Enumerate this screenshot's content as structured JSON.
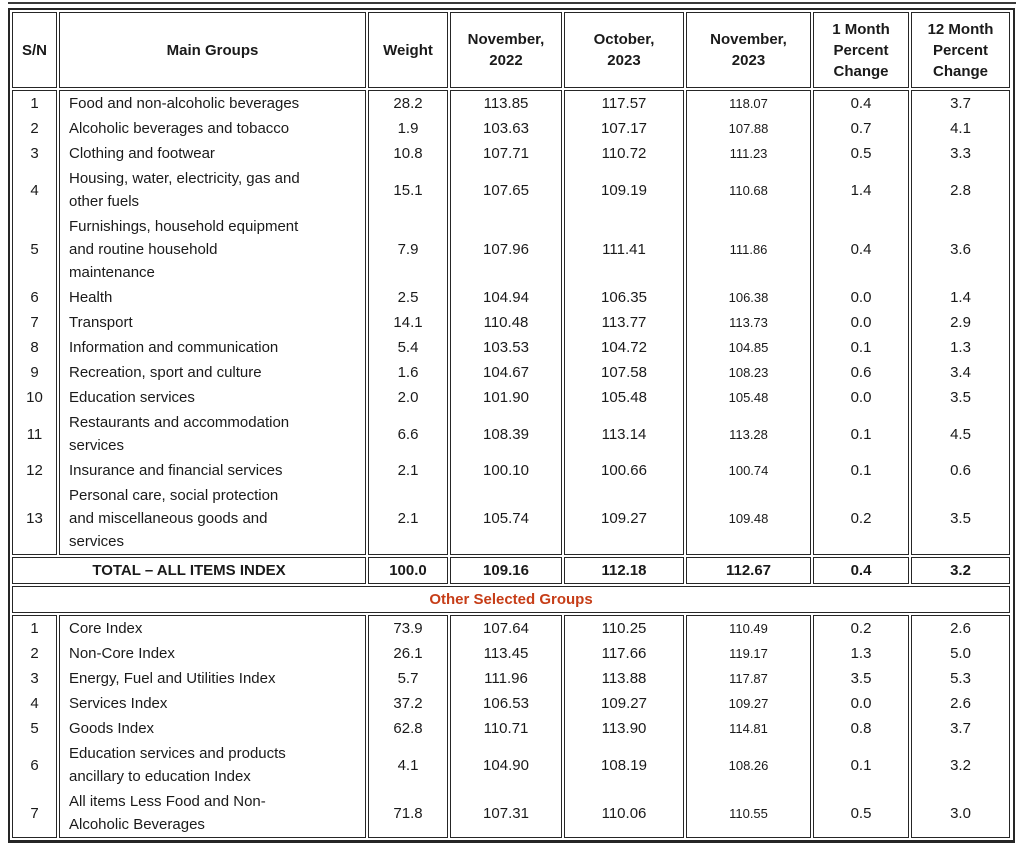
{
  "table": {
    "accent_color": "#C63D17",
    "columns": [
      "S/N",
      "Main Groups",
      "Weight",
      "November,\n2022",
      "October,\n2023",
      "November,\n2023",
      "1 Month\nPercent\nChange",
      "12 Month\nPercent\nChange"
    ],
    "main_rows": [
      {
        "sn": "1",
        "name": "Food and non-alcoholic beverages",
        "weight": "28.2",
        "nov2022": "113.85",
        "oct2023": "117.57",
        "nov2023": "118.07",
        "m1": "0.4",
        "m12": "3.7"
      },
      {
        "sn": "2",
        "name": "Alcoholic beverages and tobacco",
        "weight": "1.9",
        "nov2022": "103.63",
        "oct2023": "107.17",
        "nov2023": "107.88",
        "m1": "0.7",
        "m12": "4.1"
      },
      {
        "sn": "3",
        "name": "Clothing and footwear",
        "weight": "10.8",
        "nov2022": "107.71",
        "oct2023": "110.72",
        "nov2023": "111.23",
        "m1": "0.5",
        "m12": "3.3"
      },
      {
        "sn": "4",
        "name": "Housing, water, electricity, gas and\nother fuels",
        "weight": "15.1",
        "nov2022": "107.65",
        "oct2023": "109.19",
        "nov2023": "110.68",
        "m1": "1.4",
        "m12": "2.8"
      },
      {
        "sn": "5",
        "name": "Furnishings, household equipment\nand routine household\nmaintenance",
        "weight": "7.9",
        "nov2022": "107.96",
        "oct2023": "111.41",
        "nov2023": "111.86",
        "m1": "0.4",
        "m12": "3.6"
      },
      {
        "sn": "6",
        "name": "Health",
        "weight": "2.5",
        "nov2022": "104.94",
        "oct2023": "106.35",
        "nov2023": "106.38",
        "m1": "0.0",
        "m12": "1.4"
      },
      {
        "sn": "7",
        "name": "Transport",
        "weight": "14.1",
        "nov2022": "110.48",
        "oct2023": "113.77",
        "nov2023": "113.73",
        "m1": "0.0",
        "m12": "2.9"
      },
      {
        "sn": "8",
        "name": "Information and communication",
        "weight": "5.4",
        "nov2022": "103.53",
        "oct2023": "104.72",
        "nov2023": "104.85",
        "m1": "0.1",
        "m12": "1.3"
      },
      {
        "sn": "9",
        "name": "Recreation, sport and culture",
        "weight": "1.6",
        "nov2022": "104.67",
        "oct2023": "107.58",
        "nov2023": "108.23",
        "m1": "0.6",
        "m12": "3.4"
      },
      {
        "sn": "10",
        "name": "Education services",
        "weight": "2.0",
        "nov2022": "101.90",
        "oct2023": "105.48",
        "nov2023": "105.48",
        "m1": "0.0",
        "m12": "3.5"
      },
      {
        "sn": "11",
        "name": "Restaurants and accommodation\nservices",
        "weight": "6.6",
        "nov2022": "108.39",
        "oct2023": "113.14",
        "nov2023": "113.28",
        "m1": "0.1",
        "m12": "4.5"
      },
      {
        "sn": "12",
        "name": "Insurance and financial services",
        "weight": "2.1",
        "nov2022": "100.10",
        "oct2023": "100.66",
        "nov2023": "100.74",
        "m1": "0.1",
        "m12": "0.6"
      },
      {
        "sn": "13",
        "name": "Personal care, social protection\nand miscellaneous goods and\nservices",
        "weight": "2.1",
        "nov2022": "105.74",
        "oct2023": "109.27",
        "nov2023": "109.48",
        "m1": "0.2",
        "m12": "3.5"
      }
    ],
    "total": {
      "label": "TOTAL – ALL ITEMS INDEX",
      "weight": "100.0",
      "nov2022": "109.16",
      "oct2023": "112.18",
      "nov2023": "112.67",
      "m1": "0.4",
      "m12": "3.2"
    },
    "section_title": "Other Selected Groups",
    "other_rows": [
      {
        "sn": "1",
        "name": "Core Index",
        "weight": "73.9",
        "nov2022": "107.64",
        "oct2023": "110.25",
        "nov2023": "110.49",
        "m1": "0.2",
        "m12": "2.6"
      },
      {
        "sn": "2",
        "name": "Non-Core Index",
        "weight": "26.1",
        "nov2022": "113.45",
        "oct2023": "117.66",
        "nov2023": "119.17",
        "m1": "1.3",
        "m12": "5.0"
      },
      {
        "sn": "3",
        "name": "Energy, Fuel and Utilities Index",
        "weight": "5.7",
        "nov2022": "111.96",
        "oct2023": "113.88",
        "nov2023": "117.87",
        "m1": "3.5",
        "m12": "5.3"
      },
      {
        "sn": "4",
        "name": "Services Index",
        "weight": "37.2",
        "nov2022": "106.53",
        "oct2023": "109.27",
        "nov2023": "109.27",
        "m1": "0.0",
        "m12": "2.6"
      },
      {
        "sn": "5",
        "name": "Goods Index",
        "weight": "62.8",
        "nov2022": "110.71",
        "oct2023": "113.90",
        "nov2023": "114.81",
        "m1": "0.8",
        "m12": "3.7"
      },
      {
        "sn": "6",
        "name": "Education services and products\nancillary to education Index",
        "weight": "4.1",
        "nov2022": "104.90",
        "oct2023": "108.19",
        "nov2023": "108.26",
        "m1": "0.1",
        "m12": "3.2"
      },
      {
        "sn": "7",
        "name": "All items Less Food and Non-\nAlcoholic Beverages",
        "weight": "71.8",
        "nov2022": "107.31",
        "oct2023": "110.06",
        "nov2023": "110.55",
        "m1": "0.5",
        "m12": "3.0"
      }
    ]
  }
}
